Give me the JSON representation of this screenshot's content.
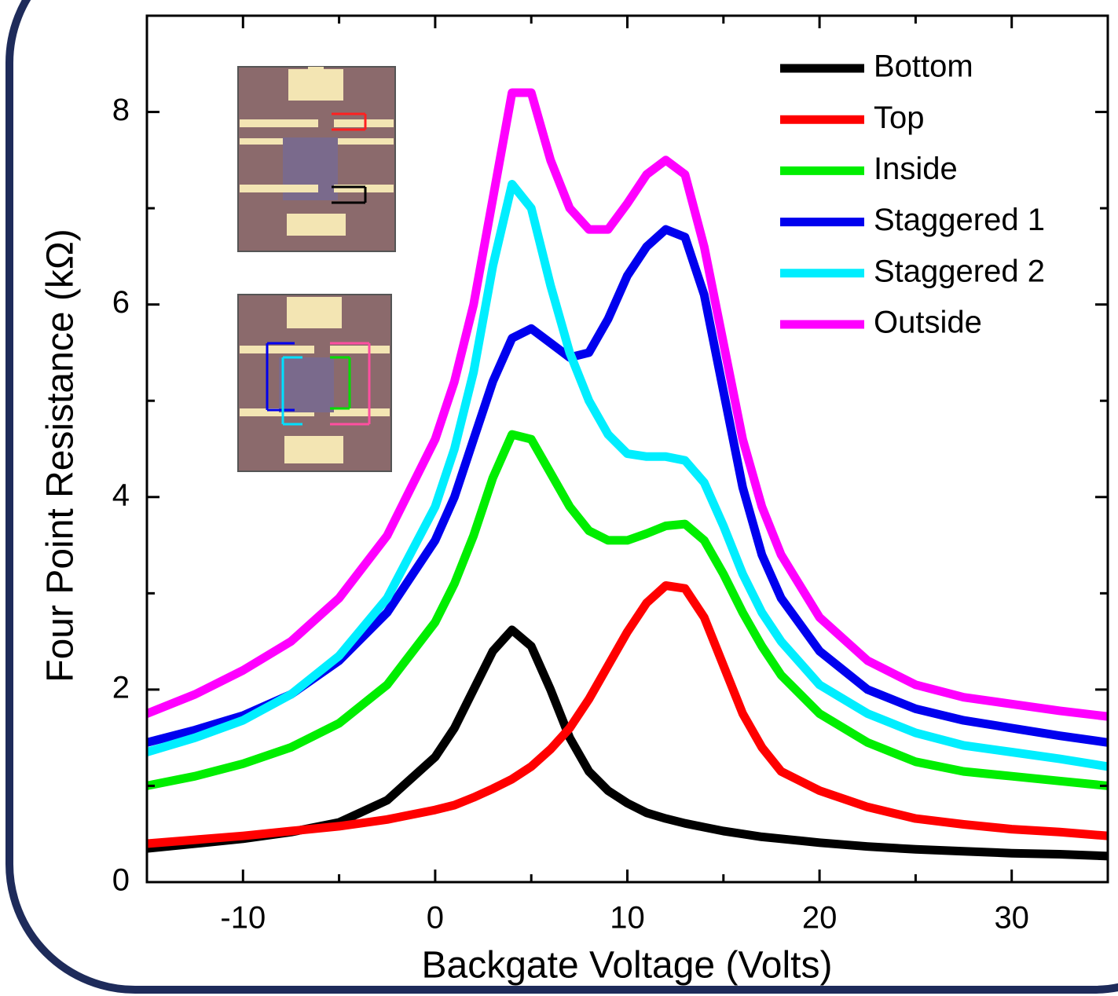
{
  "chart_data": {
    "type": "line",
    "x_label": "Backgate Voltage (Volts)",
    "y_label": "Four Point Resistance (kΩ)",
    "xlim": [
      -15,
      35
    ],
    "ylim": [
      0,
      9
    ],
    "xticks": [
      -10,
      0,
      10,
      20,
      30
    ],
    "yticks": [
      0,
      2,
      4,
      6,
      8
    ],
    "x_minor_ticks": [
      -15,
      -5,
      5,
      15,
      25,
      35
    ],
    "y_minor_ticks": [
      1,
      3,
      5,
      7,
      9
    ],
    "legend_position": "upper-right",
    "x": [
      -15,
      -12.5,
      -10,
      -7.5,
      -5,
      -2.5,
      0,
      1,
      2,
      3,
      4,
      5,
      6,
      7,
      8,
      9,
      10,
      11,
      12,
      13,
      14,
      15,
      16,
      17,
      18,
      20,
      22.5,
      25,
      27.5,
      30,
      32.5,
      35
    ],
    "series": [
      {
        "name": "Bottom",
        "color": "#000000",
        "values": [
          0.35,
          0.4,
          0.45,
          0.52,
          0.62,
          0.85,
          1.3,
          1.6,
          2.0,
          2.4,
          2.62,
          2.45,
          2.0,
          1.5,
          1.15,
          0.95,
          0.82,
          0.72,
          0.66,
          0.61,
          0.57,
          0.53,
          0.5,
          0.47,
          0.45,
          0.41,
          0.37,
          0.34,
          0.32,
          0.3,
          0.29,
          0.27
        ]
      },
      {
        "name": "Top",
        "color": "#ff0000",
        "values": [
          0.4,
          0.44,
          0.48,
          0.53,
          0.58,
          0.65,
          0.75,
          0.8,
          0.88,
          0.97,
          1.07,
          1.2,
          1.38,
          1.6,
          1.9,
          2.25,
          2.6,
          2.9,
          3.08,
          3.05,
          2.75,
          2.25,
          1.75,
          1.4,
          1.15,
          0.95,
          0.78,
          0.66,
          0.6,
          0.55,
          0.52,
          0.48
        ]
      },
      {
        "name": "Inside",
        "color": "#00ee00",
        "values": [
          1.0,
          1.1,
          1.23,
          1.4,
          1.65,
          2.05,
          2.7,
          3.1,
          3.6,
          4.2,
          4.65,
          4.6,
          4.25,
          3.9,
          3.65,
          3.55,
          3.55,
          3.62,
          3.7,
          3.72,
          3.55,
          3.2,
          2.8,
          2.45,
          2.15,
          1.75,
          1.45,
          1.25,
          1.15,
          1.1,
          1.05,
          1.0
        ]
      },
      {
        "name": "Staggered 1",
        "color": "#0000ee",
        "values": [
          1.45,
          1.58,
          1.73,
          1.95,
          2.3,
          2.8,
          3.55,
          4.0,
          4.6,
          5.2,
          5.65,
          5.75,
          5.6,
          5.45,
          5.5,
          5.85,
          6.3,
          6.6,
          6.78,
          6.7,
          6.1,
          5.1,
          4.1,
          3.4,
          2.95,
          2.4,
          2.0,
          1.8,
          1.68,
          1.6,
          1.52,
          1.45
        ]
      },
      {
        "name": "Staggered 2",
        "color": "#00eeff",
        "values": [
          1.35,
          1.5,
          1.68,
          1.95,
          2.35,
          2.95,
          3.9,
          4.5,
          5.3,
          6.4,
          7.25,
          7.0,
          6.2,
          5.5,
          5.0,
          4.65,
          4.45,
          4.42,
          4.42,
          4.38,
          4.15,
          3.7,
          3.2,
          2.8,
          2.5,
          2.05,
          1.75,
          1.55,
          1.42,
          1.35,
          1.28,
          1.2
        ]
      },
      {
        "name": "Outside",
        "color": "#ff00ff",
        "values": [
          1.75,
          1.95,
          2.2,
          2.5,
          2.95,
          3.6,
          4.6,
          5.2,
          6.0,
          7.1,
          8.2,
          8.2,
          7.5,
          7.0,
          6.78,
          6.78,
          7.05,
          7.35,
          7.5,
          7.35,
          6.6,
          5.6,
          4.6,
          3.9,
          3.4,
          2.75,
          2.3,
          2.05,
          1.92,
          1.85,
          1.78,
          1.72
        ]
      }
    ]
  }
}
